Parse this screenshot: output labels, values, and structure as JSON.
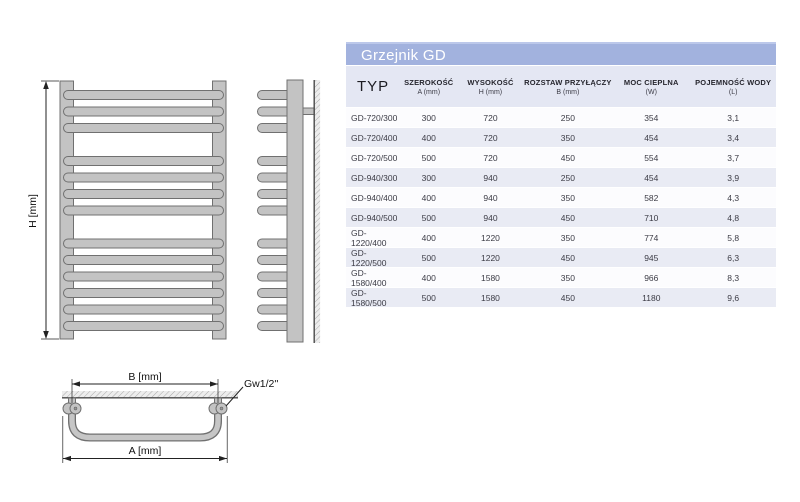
{
  "table": {
    "title": "Grzejnik GD",
    "columns": [
      {
        "label": "TYP",
        "sub": ""
      },
      {
        "label": "SZEROKOŚĆ",
        "sub": "A (mm)"
      },
      {
        "label": "WYSOKOŚĆ",
        "sub": "H (mm)"
      },
      {
        "label": "ROZSTAW PRZYŁĄCZY",
        "sub": "B (mm)"
      },
      {
        "label": "MOC CIEPLNA",
        "sub": "(W)"
      },
      {
        "label": "POJEMNOŚĆ WODY",
        "sub": "(L)"
      }
    ],
    "rows": [
      [
        "GD-720/300",
        "300",
        "720",
        "250",
        "354",
        "3,1"
      ],
      [
        "GD-720/400",
        "400",
        "720",
        "350",
        "454",
        "3,4"
      ],
      [
        "GD-720/500",
        "500",
        "720",
        "450",
        "554",
        "3,7"
      ],
      [
        "GD-940/300",
        "300",
        "940",
        "250",
        "454",
        "3,9"
      ],
      [
        "GD-940/400",
        "400",
        "940",
        "350",
        "582",
        "4,3"
      ],
      [
        "GD-940/500",
        "500",
        "940",
        "450",
        "710",
        "4,8"
      ],
      [
        "GD-1220/400",
        "400",
        "1220",
        "350",
        "774",
        "5,8"
      ],
      [
        "GD-1220/500",
        "500",
        "1220",
        "450",
        "945",
        "6,3"
      ],
      [
        "GD-1580/400",
        "400",
        "1580",
        "350",
        "966",
        "8,3"
      ],
      [
        "GD-1580/500",
        "500",
        "1580",
        "450",
        "1180",
        "9,6"
      ]
    ]
  },
  "diagram": {
    "front_height_label": "H [mm]",
    "top_connection_spacing_label": "B [mm]",
    "top_width_label": "A [mm]",
    "thread_label": "Gw1/2''"
  },
  "colors": {
    "table_title_bg": "#a2b2de",
    "table_title_top_strip": "#bcc8ea",
    "table_header_bg": "#e4e7f3",
    "row_bg": "#fcfcfe",
    "row_alt_bg": "#e9ebf4",
    "radiator_fill": "#c3c3c3",
    "radiator_stroke": "#707070"
  }
}
